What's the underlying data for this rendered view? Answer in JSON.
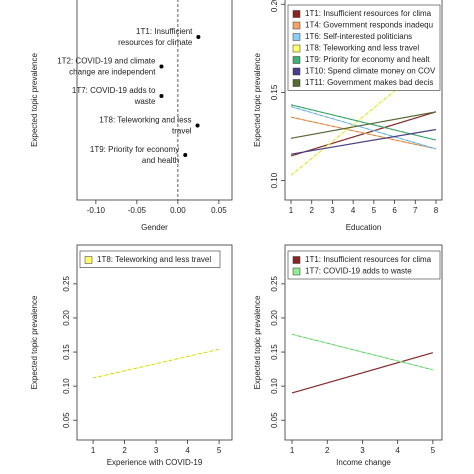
{
  "chart_data": [
    {
      "type": "dot",
      "xlabel": "Gender",
      "ylabel": "Expected topic prevalence",
      "categories": [
        [
          "1T1: Insufficient",
          "resources for climate"
        ],
        [
          "1T2: COVID-19 and climate",
          "change are independent"
        ],
        [
          "1T7: COVID-19 adds to",
          "waste"
        ],
        [
          "1T8: Teleworking and less",
          "travel"
        ],
        [
          "1T9: Priority for economy",
          "and health"
        ]
      ],
      "values": [
        0.025,
        -0.02,
        -0.02,
        0.024,
        0.009
      ],
      "color": "#000000",
      "xlim": [
        -0.123,
        0.066
      ],
      "xticks": [
        {
          "value": -0.1,
          "label": "-0.10"
        },
        {
          "value": -0.05,
          "label": "-0.05"
        },
        {
          "value": 0,
          "label": "0.00"
        },
        0.05
      ],
      "vline": 0
    },
    {
      "type": "line",
      "xlabel": "Education",
      "ylabel": "Expected topic prevalence",
      "x": [
        1,
        8
      ],
      "series": [
        {
          "name": "1T1: Insufficient resources for clima",
          "color": "#8b2323",
          "values": [
            0.114,
            0.139
          ]
        },
        {
          "name": "1T4: Government responds inadequ",
          "color": "#f4a460",
          "values": [
            0.136,
            0.118
          ]
        },
        {
          "name": "1T6: Self-interested politicians",
          "color": "#87cefa",
          "values": [
            0.142,
            0.118
          ]
        },
        {
          "name": "1T8: Teleworking and less travel",
          "color": "#ffff66",
          "values": [
            0.103,
            0.17
          ]
        },
        {
          "name": "1T9: Priority for economy and healt",
          "color": "#3cb371",
          "values": [
            0.143,
            0.123
          ]
        },
        {
          "name": "1T10: Spend climate money on COV",
          "color": "#483d8b",
          "values": [
            0.115,
            0.129
          ]
        },
        {
          "name": "1T11: Government makes bad decis",
          "color": "#556b2f",
          "values": [
            0.124,
            0.139
          ]
        }
      ],
      "xlim": [
        0.71,
        8.29
      ],
      "xticks": [
        1,
        2,
        3,
        4,
        5,
        6,
        7,
        8
      ],
      "ylim": [
        0.089,
        0.203
      ],
      "yticks": [
        {
          "value": 0.1,
          "label": "0.10"
        },
        0.15,
        {
          "value": 0.2,
          "label": "0.20"
        }
      ]
    },
    {
      "type": "line",
      "xlabel": "Experience with COVID-19",
      "ylabel": "Expected topic prevalence",
      "x": [
        1,
        5
      ],
      "series": [
        {
          "name": "1T8: Teleworking and less travel",
          "color": "#ffff66",
          "values": [
            0.112,
            0.154
          ]
        }
      ],
      "xlim": [
        0.49,
        5.41
      ],
      "xticks": [
        1,
        2,
        3,
        4,
        5
      ],
      "ylim": [
        0.021,
        0.307
      ],
      "yticks": [
        0.05,
        {
          "value": 0.1,
          "label": "0.10"
        },
        0.15,
        {
          "value": 0.2,
          "label": "0.20"
        },
        0.25
      ]
    },
    {
      "type": "line",
      "xlabel": "Income change",
      "ylabel": "Expected topic prevalence",
      "x": [
        1,
        5
      ],
      "series": [
        {
          "name": "1T1: Insufficient resources for clima",
          "color": "#8b2323",
          "values": [
            0.09,
            0.149
          ]
        },
        {
          "name": "1T7: COVID-19 adds to waste",
          "color": "#90ee90",
          "values": [
            0.176,
            0.124
          ]
        }
      ],
      "xlim": [
        0.8,
        5.26
      ],
      "xticks": [
        1,
        2,
        3,
        4,
        5
      ],
      "ylim": [
        0.021,
        0.307
      ],
      "yticks": [
        0.05,
        {
          "value": 0.1,
          "label": "0.10"
        },
        0.15,
        {
          "value": 0.2,
          "label": "0.20"
        },
        0.25
      ]
    }
  ]
}
